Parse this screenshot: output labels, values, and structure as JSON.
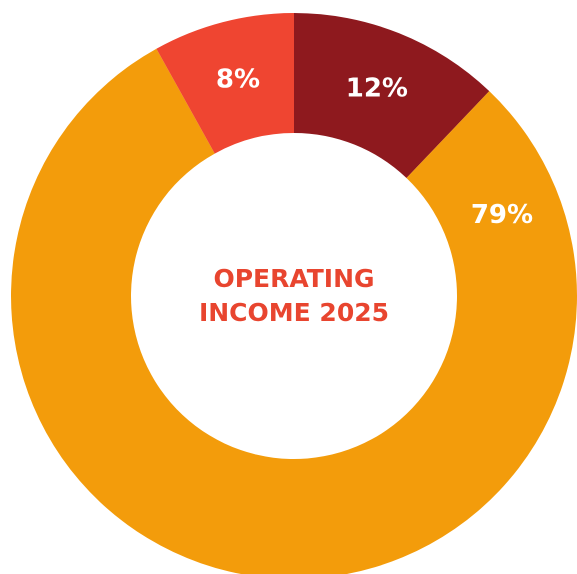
{
  "chart_data": {
    "type": "donut",
    "title": "OPERATING INCOME 2025",
    "series": [
      {
        "name": null,
        "values": [
          12,
          79,
          8
        ],
        "value_labels": [
          "12%",
          "79%",
          "8%"
        ],
        "colors": [
          "#8e191e",
          "#f39c0b",
          "#ef4531"
        ]
      }
    ]
  }
}
